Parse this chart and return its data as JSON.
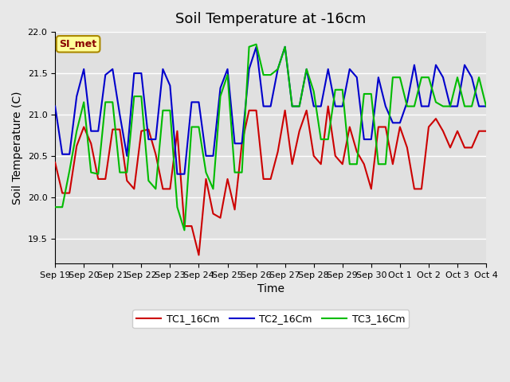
{
  "title": "Soil Temperature at -16cm",
  "xlabel": "Time",
  "ylabel": "Soil Temperature (C)",
  "ylim": [
    19.2,
    22.0
  ],
  "background_color": "#e8e8e8",
  "plot_bg_color": "#e0e0e0",
  "grid_color": "#ffffff",
  "legend_label": "SI_met",
  "legend_bg": "#ffff99",
  "legend_border": "#aa8800",
  "series": {
    "TC1_16Cm": {
      "color": "#cc0000",
      "x": [
        0,
        0.25,
        0.5,
        0.75,
        1.0,
        1.25,
        1.5,
        1.75,
        2.0,
        2.25,
        2.5,
        2.75,
        3.0,
        3.25,
        3.5,
        3.75,
        4.0,
        4.25,
        4.5,
        4.75,
        5.0,
        5.25,
        5.5,
        5.75,
        6.0,
        6.25,
        6.5,
        6.75,
        7.0,
        7.25,
        7.5,
        7.75,
        8.0,
        8.25,
        8.5,
        8.75,
        9.0,
        9.25,
        9.5,
        9.75,
        10.0,
        10.25,
        10.5,
        10.75,
        11.0,
        11.25,
        11.5,
        11.75,
        12.0,
        12.25,
        12.5,
        12.75,
        13.0,
        13.25,
        13.5,
        13.75,
        14.0,
        14.25,
        14.5,
        14.75,
        15.0
      ],
      "y": [
        20.42,
        20.05,
        20.05,
        20.62,
        20.85,
        20.65,
        20.22,
        20.22,
        20.82,
        20.82,
        20.2,
        20.1,
        20.8,
        20.82,
        20.52,
        20.1,
        20.1,
        20.8,
        19.65,
        19.65,
        19.3,
        20.22,
        19.8,
        19.75,
        20.22,
        19.85,
        20.65,
        21.05,
        21.05,
        20.22,
        20.22,
        20.55,
        21.05,
        20.4,
        20.8,
        21.05,
        20.5,
        20.4,
        21.1,
        20.5,
        20.4,
        20.85,
        20.55,
        20.4,
        20.1,
        20.85,
        20.85,
        20.4,
        20.85,
        20.6,
        20.1,
        20.1,
        20.85,
        20.95,
        20.8,
        20.6,
        20.8,
        20.6,
        20.6,
        20.8,
        20.8
      ]
    },
    "TC2_16Cm": {
      "color": "#0000cc",
      "x": [
        0,
        0.25,
        0.5,
        0.75,
        1.0,
        1.25,
        1.5,
        1.75,
        2.0,
        2.25,
        2.5,
        2.75,
        3.0,
        3.25,
        3.5,
        3.75,
        4.0,
        4.25,
        4.5,
        4.75,
        5.0,
        5.25,
        5.5,
        5.75,
        6.0,
        6.25,
        6.5,
        6.75,
        7.0,
        7.25,
        7.5,
        7.75,
        8.0,
        8.25,
        8.5,
        8.75,
        9.0,
        9.25,
        9.5,
        9.75,
        10.0,
        10.25,
        10.5,
        10.75,
        11.0,
        11.25,
        11.5,
        11.75,
        12.0,
        12.25,
        12.5,
        12.75,
        13.0,
        13.25,
        13.5,
        13.75,
        14.0,
        14.25,
        14.5,
        14.75,
        15.0
      ],
      "y": [
        21.1,
        20.52,
        20.52,
        21.22,
        21.55,
        20.8,
        20.8,
        21.48,
        21.55,
        21.0,
        20.5,
        21.5,
        21.5,
        20.7,
        20.7,
        21.55,
        21.35,
        20.28,
        20.28,
        21.15,
        21.15,
        20.5,
        20.5,
        21.32,
        21.55,
        20.65,
        20.65,
        21.55,
        21.82,
        21.1,
        21.1,
        21.55,
        21.82,
        21.1,
        21.1,
        21.55,
        21.1,
        21.1,
        21.55,
        21.1,
        21.1,
        21.55,
        21.45,
        20.7,
        20.7,
        21.45,
        21.1,
        20.9,
        20.9,
        21.15,
        21.6,
        21.1,
        21.1,
        21.6,
        21.45,
        21.1,
        21.1,
        21.6,
        21.45,
        21.1,
        21.1
      ]
    },
    "TC3_16Cm": {
      "color": "#00bb00",
      "x": [
        0,
        0.25,
        0.5,
        0.75,
        1.0,
        1.25,
        1.5,
        1.75,
        2.0,
        2.25,
        2.5,
        2.75,
        3.0,
        3.25,
        3.5,
        3.75,
        4.0,
        4.25,
        4.5,
        4.75,
        5.0,
        5.25,
        5.5,
        5.75,
        6.0,
        6.25,
        6.5,
        6.75,
        7.0,
        7.25,
        7.5,
        7.75,
        8.0,
        8.25,
        8.5,
        8.75,
        9.0,
        9.25,
        9.5,
        9.75,
        10.0,
        10.25,
        10.5,
        10.75,
        11.0,
        11.25,
        11.5,
        11.75,
        12.0,
        12.25,
        12.5,
        12.75,
        13.0,
        13.25,
        13.5,
        13.75,
        14.0,
        14.25,
        14.5,
        14.75,
        15.0
      ],
      "y": [
        19.88,
        19.88,
        20.32,
        20.8,
        21.15,
        20.3,
        20.28,
        21.15,
        21.15,
        20.3,
        20.3,
        21.22,
        21.22,
        20.2,
        20.1,
        21.05,
        21.05,
        19.88,
        19.6,
        20.85,
        20.85,
        20.3,
        20.1,
        21.22,
        21.48,
        20.3,
        20.3,
        21.82,
        21.85,
        21.48,
        21.48,
        21.55,
        21.82,
        21.1,
        21.1,
        21.55,
        21.28,
        20.7,
        20.7,
        21.3,
        21.3,
        20.4,
        20.4,
        21.25,
        21.25,
        20.4,
        20.4,
        21.45,
        21.45,
        21.1,
        21.1,
        21.45,
        21.45,
        21.15,
        21.1,
        21.1,
        21.45,
        21.1,
        21.1,
        21.45,
        21.1
      ]
    }
  },
  "x_tick_labels": [
    "Sep 19",
    "Sep 20",
    "Sep 21",
    "Sep 22",
    "Sep 23",
    "Sep 24",
    "Sep 25",
    "Sep 26",
    "Sep 27",
    "Sep 28",
    "Sep 29",
    "Sep 30",
    "Oct 1",
    "Oct 2",
    "Oct 3",
    "Oct 4"
  ],
  "x_tick_positions": [
    0,
    1,
    2,
    3,
    4,
    5,
    6,
    7,
    8,
    9,
    10,
    11,
    12,
    13,
    14,
    15
  ],
  "line_width": 1.5,
  "title_fontsize": 13,
  "axis_fontsize": 10,
  "tick_fontsize": 8
}
